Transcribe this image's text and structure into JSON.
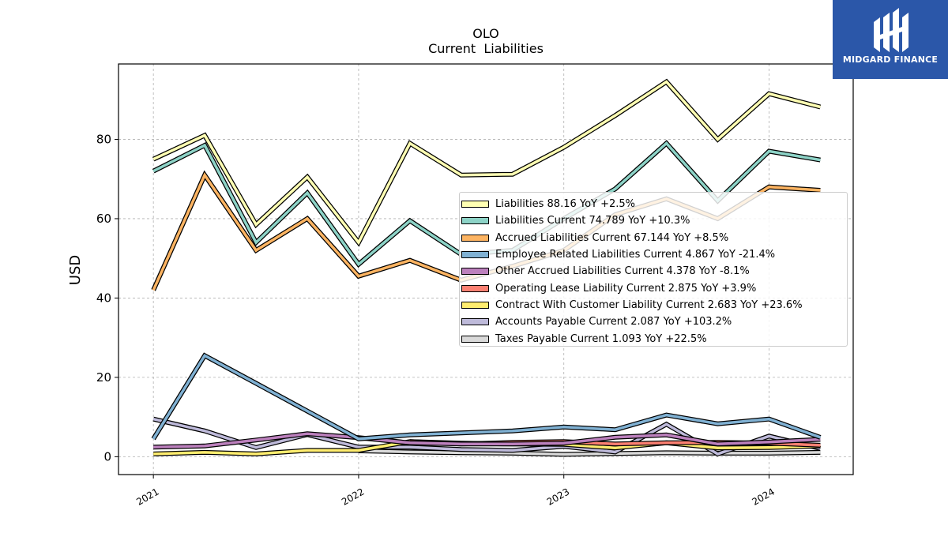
{
  "brand": {
    "name": "MIDGARD FINANCE",
    "color": "#2b57a9",
    "icon": "midgard-logo-icon"
  },
  "chart_data": {
    "type": "line",
    "title": "OLO",
    "subtitle": "Current  Liabilities",
    "ylabel": "USD",
    "xlabel": "",
    "ylim": [
      -4.5,
      99
    ],
    "yticks": [
      0,
      20,
      40,
      60,
      80
    ],
    "xlim": [
      2020.83,
      2024.41
    ],
    "xticks": [
      2021,
      2022,
      2023,
      2024
    ],
    "xtick_labels": [
      "2021",
      "2022",
      "2023",
      "2024"
    ],
    "grid": true,
    "legend_position": "center-right",
    "x": [
      2021.0,
      2021.25,
      2021.5,
      2021.75,
      2022.0,
      2022.25,
      2022.5,
      2022.75,
      2023.0,
      2023.25,
      2023.5,
      2023.75,
      2024.0,
      2024.25
    ],
    "series": [
      {
        "name": "Liabilities",
        "legend": "Liabilities  88.16 YoY +2.5%",
        "color": "#ffffb3",
        "values": [
          75,
          81,
          58.5,
          70.5,
          54,
          79,
          71,
          71.2,
          78,
          86,
          94.5,
          80,
          91.5,
          88.16
        ]
      },
      {
        "name": "Liabilities Current",
        "legend": "Liabilities Current  74.789 YoY +10.3%",
        "color": "#8dd3c7",
        "values": [
          72,
          78.5,
          54,
          66.5,
          48.5,
          59.5,
          51,
          52,
          60,
          67.5,
          79,
          64.5,
          77,
          74.789
        ]
      },
      {
        "name": "Accrued Liabilities Current",
        "legend": "Accrued Liabilities Current  67.144 YoY +8.5%",
        "color": "#fdb462",
        "values": [
          42,
          71,
          52,
          60,
          45.5,
          49.5,
          44.5,
          48,
          52,
          61,
          65,
          60,
          68,
          67.144
        ]
      },
      {
        "name": "Employee Related Liabilities Current",
        "legend": "Employee Related Liabilities Current  4.867 YoY -21.4%",
        "color": "#80b1d3",
        "values": [
          4.5,
          25.5,
          18.5,
          11.5,
          4.5,
          5.5,
          6,
          6.5,
          7.5,
          6.8,
          10.5,
          8.3,
          9.5,
          4.867
        ]
      },
      {
        "name": "Other Accrued Liabilities Current",
        "legend": "Other Accrued Liabilities Current  4.378 YoY -8.1%",
        "color": "#bc80bd",
        "values": [
          2.4,
          2.7,
          4.2,
          5.8,
          4.8,
          3.5,
          3.2,
          3.2,
          3.4,
          4.9,
          5.5,
          3.2,
          3.7,
          4.378
        ]
      },
      {
        "name": "Operating Lease Liability Current",
        "legend": "Operating Lease Liability Current  2.875 YoY +3.9%",
        "color": "#fb8072",
        "values": [
          null,
          null,
          null,
          null,
          null,
          3.8,
          3.2,
          3.6,
          3.8,
          3.2,
          3.5,
          3.6,
          3.4,
          2.875
        ]
      },
      {
        "name": "Contract With Customer Liability Current",
        "legend": "Contract With Customer Liability Current  2.683 YoY +23.6%",
        "color": "#ffed6f",
        "values": [
          0.7,
          1.1,
          0.7,
          1.6,
          1.6,
          3.8,
          3.4,
          3.2,
          3.1,
          2.2,
          3.5,
          2.2,
          2.3,
          2.683
        ]
      },
      {
        "name": "Accounts Payable Current",
        "legend": "Accounts Payable Current  2.087 YoY +103.2%",
        "color": "#bebada",
        "values": [
          9.5,
          6.5,
          2.3,
          5.6,
          2.4,
          2.4,
          1.8,
          1.6,
          2.6,
          1.2,
          8.2,
          0.7,
          5.2,
          2.087
        ]
      },
      {
        "name": "Taxes Payable Current",
        "legend": "Taxes Payable Current  1.093 YoY +22.5%",
        "color": "#d9d9d9",
        "values": [
          null,
          null,
          null,
          null,
          1.5,
          1.2,
          1.0,
          0.9,
          0.6,
          0.8,
          1.0,
          0.9,
          0.9,
          1.093
        ]
      }
    ]
  }
}
